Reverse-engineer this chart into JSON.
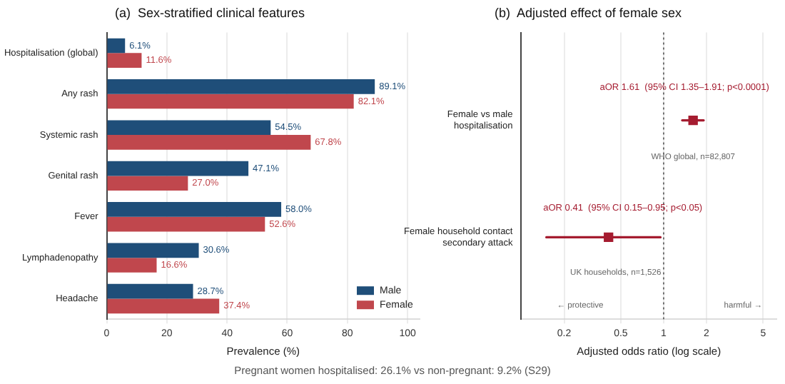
{
  "chart_data": [
    {
      "type": "bar",
      "orientation": "horizontal",
      "title": "(a)  Sex-stratified clinical features",
      "xlabel": "Prevalence (%)",
      "categories": [
        "Hospitalisation (global)",
        "Any rash",
        "Systemic rash",
        "Genital rash",
        "Fever",
        "Lymphadenopathy",
        "Headache"
      ],
      "series": [
        {
          "name": "Male",
          "color": "#1f4e79",
          "values": [
            6.1,
            89.1,
            54.5,
            47.1,
            58.0,
            30.6,
            28.7
          ],
          "value_labels": [
            "6.1%",
            "89.1%",
            "54.5%",
            "47.1%",
            "58.0%",
            "30.6%",
            "28.7%"
          ]
        },
        {
          "name": "Female",
          "color": "#c0474d",
          "values": [
            11.6,
            82.1,
            67.8,
            27.0,
            52.6,
            16.6,
            37.4
          ],
          "value_labels": [
            "11.6%",
            "82.1%",
            "67.8%",
            "27.0%",
            "52.6%",
            "16.6%",
            "37.4%"
          ]
        }
      ],
      "xlim": [
        0,
        104
      ],
      "xticks": [
        0,
        20,
        40,
        60,
        80,
        100
      ],
      "grid": "x",
      "legend": "bottom right",
      "annotations": [
        "Pregnant women hospitalised: 26.1%  vs  non-pregnant: 9.2%  (S29)"
      ]
    },
    {
      "type": "scatter",
      "orientation": "horizontal",
      "title": "(b)  Adjusted effect of female sex",
      "xlabel": "Adjusted odds ratio (log scale)",
      "categories": [
        "Female vs male\nhospitalisation",
        "Female household contact\nsecondary attack"
      ],
      "series": [
        {
          "color": "#a51c30",
          "values": [
            1.61,
            0.41
          ],
          "errors": [
            [
              1.35,
              1.91
            ],
            [
              0.15,
              0.95
            ]
          ]
        }
      ],
      "log": "x",
      "xlim": [
        0.1,
        6.2
      ],
      "xticks": [
        0.2,
        0.5,
        1,
        2,
        5
      ],
      "grid": "x",
      "marker": "square",
      "ref_lines": [
        {
          "axis": "x",
          "value": 1,
          "color": "#555555",
          "line_style": "dotted"
        }
      ],
      "annotations": [
        "aOR 1.61  (95% CI 1.35–1.91; p<0.0001)",
        "WHO global, n=82,807",
        "aOR 0.41  (95% CI 0.15–0.95; p<0.05)",
        "UK households, n=1,526",
        "← protective",
        "harmful →"
      ]
    }
  ]
}
